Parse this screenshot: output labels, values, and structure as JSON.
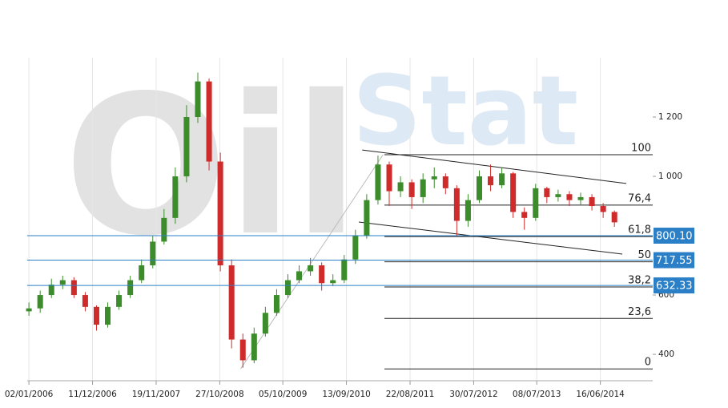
{
  "chart_data": {
    "type": "candlestick",
    "watermark": [
      "Oil",
      "Stat"
    ],
    "x": [
      0,
      2,
      4,
      6,
      8,
      10,
      12,
      14,
      16,
      18,
      20,
      22,
      24,
      26,
      28,
      30,
      32,
      34,
      36,
      38,
      40,
      42,
      44,
      46,
      48,
      50,
      52,
      54,
      56,
      58,
      60,
      62,
      64,
      66,
      68,
      70,
      72,
      74,
      76,
      78,
      80,
      82,
      84,
      86,
      88,
      90,
      92,
      94,
      96,
      98,
      100,
      102,
      104
    ],
    "open": [
      545,
      555,
      600,
      635,
      650,
      600,
      560,
      500,
      560,
      600,
      650,
      700,
      780,
      860,
      1000,
      1200,
      1320,
      1050,
      700,
      450,
      380,
      470,
      540,
      600,
      650,
      680,
      700,
      640,
      650,
      720,
      800,
      920,
      1040,
      950,
      980,
      930,
      990,
      1000,
      960,
      850,
      920,
      1000,
      970,
      1010,
      880,
      860,
      960,
      930,
      940,
      920,
      930,
      900,
      880
    ],
    "high": [
      575,
      615,
      655,
      665,
      660,
      610,
      565,
      575,
      615,
      665,
      720,
      800,
      890,
      1030,
      1240,
      1350,
      1330,
      1080,
      720,
      470,
      490,
      560,
      620,
      670,
      700,
      725,
      710,
      670,
      735,
      820,
      940,
      1070,
      1050,
      1000,
      990,
      1010,
      1030,
      1010,
      970,
      940,
      1020,
      1040,
      1030,
      1015,
      895,
      975,
      965,
      955,
      950,
      945,
      940,
      910,
      885
    ],
    "low": [
      530,
      540,
      590,
      620,
      590,
      545,
      480,
      490,
      550,
      590,
      640,
      690,
      770,
      840,
      980,
      1180,
      1020,
      680,
      420,
      355,
      370,
      460,
      530,
      590,
      640,
      665,
      615,
      630,
      640,
      705,
      790,
      905,
      900,
      930,
      890,
      910,
      960,
      940,
      800,
      830,
      910,
      950,
      960,
      860,
      820,
      850,
      910,
      915,
      900,
      905,
      885,
      860,
      830
    ],
    "close": [
      555,
      600,
      635,
      650,
      600,
      560,
      500,
      560,
      600,
      650,
      700,
      780,
      860,
      1000,
      1200,
      1320,
      1050,
      700,
      450,
      380,
      470,
      540,
      600,
      650,
      680,
      700,
      640,
      650,
      720,
      800,
      920,
      1040,
      950,
      980,
      930,
      990,
      1000,
      960,
      850,
      920,
      1000,
      970,
      1010,
      880,
      860,
      960,
      930,
      940,
      920,
      930,
      900,
      880,
      845
    ],
    "up_color": "#3c8c2c",
    "down_color": "#d02b2b",
    "xlim": [
      -0.3,
      110.8
    ],
    "ylim": [
      311,
      1400
    ],
    "xticks": [
      {
        "value": 0,
        "label": "02/01/2006"
      },
      {
        "value": 11.3,
        "label": "11/12/2006"
      },
      {
        "value": 22.6,
        "label": "19/11/2007"
      },
      {
        "value": 33.9,
        "label": "27/10/2008"
      },
      {
        "value": 45.1,
        "label": "05/10/2009"
      },
      {
        "value": 56.4,
        "label": "13/09/2010"
      },
      {
        "value": 67.7,
        "label": "22/08/2011"
      },
      {
        "value": 79,
        "label": "30/07/2012"
      },
      {
        "value": 90.2,
        "label": "08/07/2013"
      },
      {
        "value": 101.5,
        "label": "16/06/2014"
      }
    ],
    "yticks": [
      400,
      600,
      {
        "value": 1000,
        "label": "1 000"
      },
      {
        "value": 1200,
        "label": "1 200"
      }
    ],
    "grid": true,
    "fib_levels": [
      {
        "value": 1073,
        "label": "100"
      },
      {
        "value": 903,
        "label": "76,4"
      },
      {
        "value": 797,
        "label": "61,8"
      },
      {
        "value": 712,
        "label": "50"
      },
      {
        "value": 627,
        "label": "38,2"
      },
      {
        "value": 521,
        "label": "23,6"
      },
      {
        "value": 351,
        "label": "0"
      }
    ],
    "price_lines": [
      {
        "value": 800.1,
        "label": "800.10"
      },
      {
        "value": 717.55,
        "label": "717.55"
      },
      {
        "value": 632.33,
        "label": "632.33"
      }
    ],
    "price_line_color": "#2a7fc6",
    "trendlines": [
      {
        "from": [
          37.6,
          351
        ],
        "to": [
          62.9,
          1073
        ],
        "color": "#bbbbbb"
      },
      {
        "from": [
          59.2,
          1089
        ],
        "to": [
          106.1,
          976
        ],
        "color": "#222222"
      },
      {
        "from": [
          58.6,
          846
        ],
        "to": [
          105.4,
          738
        ],
        "color": "#222222"
      }
    ]
  }
}
